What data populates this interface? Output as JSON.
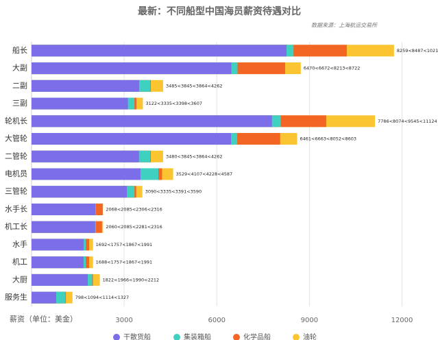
{
  "chart_data": {
    "type": "overlap_bar",
    "title": "最新：不同船型中国海员薪资待遇对比",
    "subtitle": "数据来源：上海航运交易所",
    "x_label": "薪资（单位：美金）",
    "categories": [
      "船长",
      "大副",
      "二副",
      "三副",
      "轮机长",
      "大管轮",
      "二管轮",
      "电机员",
      "三管轮",
      "水手长",
      "机工长",
      "水手",
      "机工",
      "大厨",
      "服务生"
    ],
    "series": [
      {
        "name": "干散货船",
        "color": "#7b6ee8",
        "values": [
          8259,
          6470,
          3485,
          3122,
          7786,
          6461,
          3480,
          3529,
          3090,
          2068,
          2060,
          1692,
          1688,
          1822,
          798
        ]
      },
      {
        "name": "集装箱船",
        "color": "#3fd0c0",
        "values": [
          8487,
          6672,
          3845,
          3335,
          8074,
          6663,
          3845,
          4107,
          3335,
          2085,
          2085,
          1757,
          1757,
          1966,
          1094
        ]
      },
      {
        "name": "化学品船",
        "color": "#f26522",
        "values": [
          10211,
          8213,
          3864,
          3398,
          9545,
          8052,
          3864,
          4228,
          3391,
          2306,
          2281,
          1867,
          1867,
          1990,
          1114
        ]
      },
      {
        "name": "油轮",
        "color": "#fbc531",
        "values": [
          11741,
          8722,
          4262,
          3607,
          11124,
          8603,
          4262,
          4587,
          3590,
          2316,
          2316,
          1991,
          1991,
          2212,
          1327
        ]
      }
    ],
    "value_labels": [
      "8259<8487<10211<11741",
      "6470<6672<8213<8722",
      "3485<3845<3864<4262",
      "3122<3335<3398<3607",
      "7786<8074<9545<11124",
      "6461<6663<8052<8603",
      "3480<3845<3864<4262",
      "3529<4107<4228<4587",
      "3090<3335<3391<3590",
      "2068<2085<2306<2316",
      "2060<2085<2281<2316",
      "1692<1757<1867<1991",
      "1688<1757<1867<1991",
      "1822<1966<1990<2212",
      "798<1094<1114<1327"
    ],
    "xlim": [
      0,
      12300
    ],
    "xticks": [
      3000,
      6000,
      9000,
      12000
    ],
    "grid": true
  }
}
